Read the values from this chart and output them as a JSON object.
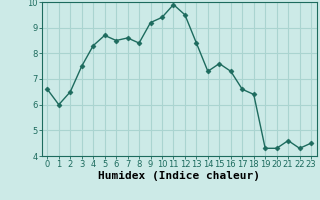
{
  "x": [
    0,
    1,
    2,
    3,
    4,
    5,
    6,
    7,
    8,
    9,
    10,
    11,
    12,
    13,
    14,
    15,
    16,
    17,
    18,
    19,
    20,
    21,
    22,
    23
  ],
  "y": [
    6.6,
    6.0,
    6.5,
    7.5,
    8.3,
    8.7,
    8.5,
    8.6,
    8.4,
    9.2,
    9.4,
    9.9,
    9.5,
    8.4,
    7.3,
    7.6,
    7.3,
    6.6,
    6.4,
    4.3,
    4.3,
    4.6,
    4.3,
    4.5
  ],
  "line_color": "#1d6b5e",
  "marker": "D",
  "marker_size": 2.5,
  "bg_color": "#cceae7",
  "grid_color": "#aad4d0",
  "xlabel": "Humidex (Indice chaleur)",
  "xlabel_fontsize": 8,
  "ylim": [
    4,
    10
  ],
  "xlim": [
    -0.5,
    23.5
  ],
  "yticks": [
    4,
    5,
    6,
    7,
    8,
    9,
    10
  ],
  "xticks": [
    0,
    1,
    2,
    3,
    4,
    5,
    6,
    7,
    8,
    9,
    10,
    11,
    12,
    13,
    14,
    15,
    16,
    17,
    18,
    19,
    20,
    21,
    22,
    23
  ],
  "tick_fontsize": 6,
  "line_width": 1.0
}
